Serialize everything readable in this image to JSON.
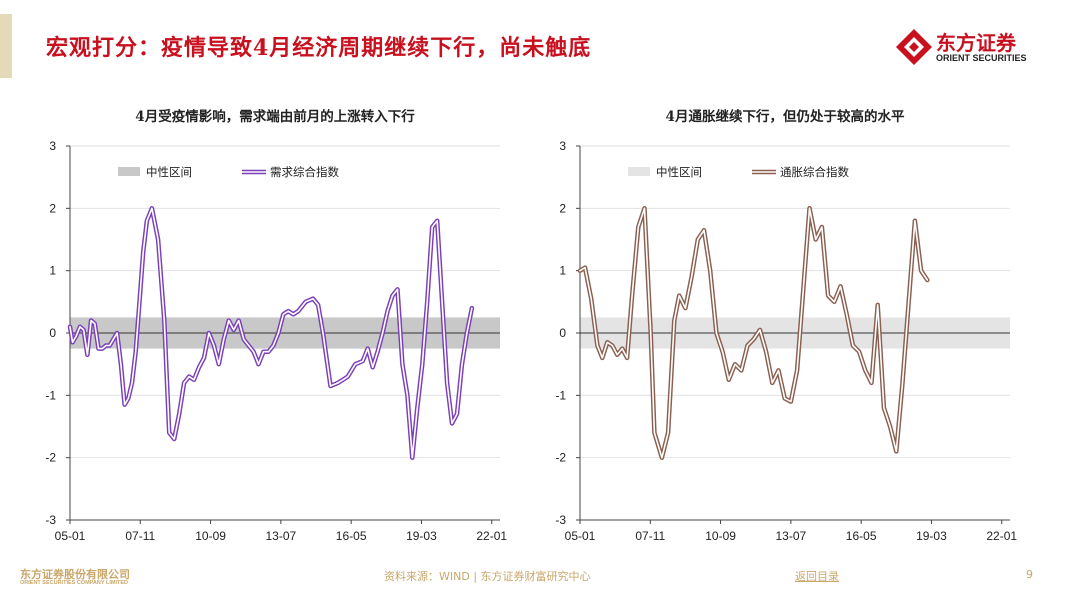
{
  "header": {
    "title": "宏观打分：疫情导致4月经济周期继续下行，尚未触底",
    "logo_cn": "东方证券",
    "logo_en": "ORIENT SECURITIES",
    "brand_color": "#c8101f"
  },
  "footer": {
    "logo_cn": "东方证券股份有限公司",
    "logo_en": "ORIENT SECURITIES COMPANY LIMITED",
    "source": "资料来源：WIND | 东方证券财富研究中心",
    "back_link": "返回目录",
    "page": "9"
  },
  "chart_data": [
    {
      "type": "line",
      "title": "4月受疫情影响，需求端由前月的上涨转入下行",
      "xlabel": "",
      "ylabel": "",
      "ylim": [
        -3,
        3
      ],
      "yticks": [
        "3",
        "2",
        "1",
        "0",
        "-1",
        "-2",
        "-3"
      ],
      "xticks": [
        "05-01",
        "07-11",
        "10-09",
        "13-07",
        "16-05",
        "19-03",
        "22-01"
      ],
      "xlim": [
        2005.0,
        2022.3333
      ],
      "legend": [
        "中性区间",
        "需求综合指数"
      ],
      "legend_position": "top-left",
      "neutral_band": [
        -0.25,
        0.25
      ],
      "band_color": "#c8c8c8",
      "line_color": "#7b3fb8",
      "series": [
        {
          "name": "需求综合指数",
          "x": [
            2005.0,
            2005.1,
            2005.25,
            2005.4,
            2005.55,
            2005.7,
            2005.85,
            2006.0,
            2006.15,
            2006.3,
            2006.45,
            2006.6,
            2006.75,
            2006.9,
            2007.05,
            2007.2,
            2007.35,
            2007.5,
            2007.65,
            2007.8,
            2007.95,
            2008.1,
            2008.3,
            2008.55,
            2008.8,
            2009.0,
            2009.2,
            2009.4,
            2009.6,
            2009.8,
            2010.0,
            2010.2,
            2010.4,
            2010.6,
            2010.8,
            2011.0,
            2011.2,
            2011.4,
            2011.6,
            2011.8,
            2012.0,
            2012.2,
            2012.4,
            2012.6,
            2012.8,
            2013.0,
            2013.2,
            2013.4,
            2013.6,
            2013.8,
            2014.0,
            2014.2,
            2014.5,
            2014.8,
            2015.0,
            2015.2,
            2015.5,
            2015.8,
            2016.0,
            2016.2,
            2016.5,
            2016.8,
            2017.0,
            2017.2,
            2017.4,
            2017.6,
            2017.8,
            2018.0,
            2018.2,
            2018.4,
            2018.6,
            2018.8,
            2019.0,
            2019.2,
            2019.4,
            2019.6,
            2019.8,
            2020.0,
            2020.2,
            2020.4,
            2020.6,
            2020.8,
            2021.0,
            2021.2,
            2021.4,
            2021.6,
            2021.8,
            2022.0,
            2022.15,
            2022.3333
          ],
          "y": [
            0.1,
            -0.15,
            -0.05,
            0.1,
            0.05,
            -0.35,
            0.2,
            0.15,
            -0.25,
            -0.25,
            -0.2,
            -0.2,
            -0.1,
            0.0,
            -0.5,
            -1.15,
            -1.05,
            -0.8,
            -0.3,
            0.5,
            1.3,
            1.8,
            2.0,
            1.5,
            0.2,
            -1.6,
            -1.7,
            -1.3,
            -0.8,
            -0.7,
            -0.75,
            -0.55,
            -0.4,
            0.0,
            -0.2,
            -0.5,
            -0.1,
            0.2,
            0.05,
            0.2,
            -0.1,
            -0.2,
            -0.3,
            -0.5,
            -0.3,
            -0.3,
            -0.2,
            0.0,
            0.3,
            0.35,
            0.3,
            0.35,
            0.5,
            0.55,
            0.45,
            0.0,
            -0.85,
            -0.8,
            -0.75,
            -0.7,
            -0.5,
            -0.45,
            -0.25,
            -0.55,
            -0.3,
            0.0,
            0.35,
            0.6,
            0.7,
            -0.5,
            -1.0,
            -2.0,
            -1.2,
            -0.5,
            0.5,
            1.7,
            1.8,
            0.5,
            -0.8,
            -1.45,
            -1.3,
            -0.5,
            0.0,
            0.4,
            null,
            null,
            null,
            null,
            null,
            null
          ]
        }
      ]
    },
    {
      "type": "line",
      "title": "4月通胀继续下行，但仍处于较高的水平",
      "xlabel": "",
      "ylabel": "",
      "ylim": [
        -3,
        3
      ],
      "yticks": [
        "3",
        "2",
        "1",
        "0",
        "-1",
        "-2",
        "-3"
      ],
      "xticks": [
        "05-01",
        "07-11",
        "10-09",
        "13-07",
        "16-05",
        "19-03",
        "22-01"
      ],
      "xlim": [
        2005.0,
        2022.3333
      ],
      "legend": [
        "中性区间",
        "通胀综合指数"
      ],
      "legend_position": "top-left",
      "neutral_band": [
        -0.25,
        0.25
      ],
      "band_color": "#e4e4e4",
      "line_color": "#8a5f4f",
      "series": [
        {
          "name": "通胀综合指数",
          "x": [
            2005.0,
            2005.2,
            2005.45,
            2005.7,
            2005.9,
            2006.1,
            2006.3,
            2006.5,
            2006.7,
            2006.9,
            2007.1,
            2007.35,
            2007.6,
            2007.85,
            2008.0,
            2008.3,
            2008.55,
            2008.8,
            2009.0,
            2009.25,
            2009.5,
            2009.75,
            2010.0,
            2010.25,
            2010.5,
            2010.75,
            2011.0,
            2011.25,
            2011.5,
            2011.75,
            2012.0,
            2012.25,
            2012.5,
            2012.75,
            2013.0,
            2013.25,
            2013.5,
            2013.75,
            2014.0,
            2014.25,
            2014.5,
            2014.75,
            2015.0,
            2015.25,
            2015.5,
            2015.75,
            2016.0,
            2016.25,
            2016.5,
            2016.75,
            2017.0,
            2017.25,
            2017.5,
            2017.75,
            2018.0,
            2018.25,
            2018.5,
            2018.75,
            2019.0,
            2019.25,
            2019.5,
            2019.75,
            2020.0,
            2020.2,
            2020.45,
            2020.7,
            2020.95,
            2021.2,
            2021.5,
            2021.8,
            2022.0,
            2022.15,
            2022.3333
          ],
          "y": [
            1.0,
            1.05,
            0.55,
            -0.2,
            -0.4,
            -0.15,
            -0.2,
            -0.35,
            -0.25,
            -0.4,
            0.6,
            1.7,
            2.0,
            0.0,
            -1.6,
            -2.0,
            -1.6,
            0.2,
            0.6,
            0.4,
            0.9,
            1.5,
            1.65,
            1.0,
            0.0,
            -0.3,
            -0.75,
            -0.5,
            -0.6,
            -0.2,
            -0.1,
            0.05,
            -0.3,
            -0.8,
            -0.6,
            -1.05,
            -1.1,
            -0.6,
            0.7,
            2.0,
            1.5,
            1.7,
            0.6,
            0.5,
            0.75,
            0.3,
            -0.2,
            -0.3,
            -0.6,
            -0.8,
            0.45,
            -1.2,
            -1.5,
            -1.9,
            -0.8,
            0.5,
            1.8,
            1.0,
            0.85,
            null,
            null,
            null,
            null,
            null,
            null,
            null,
            null,
            null,
            null,
            null,
            null,
            null,
            null
          ]
        }
      ]
    }
  ]
}
